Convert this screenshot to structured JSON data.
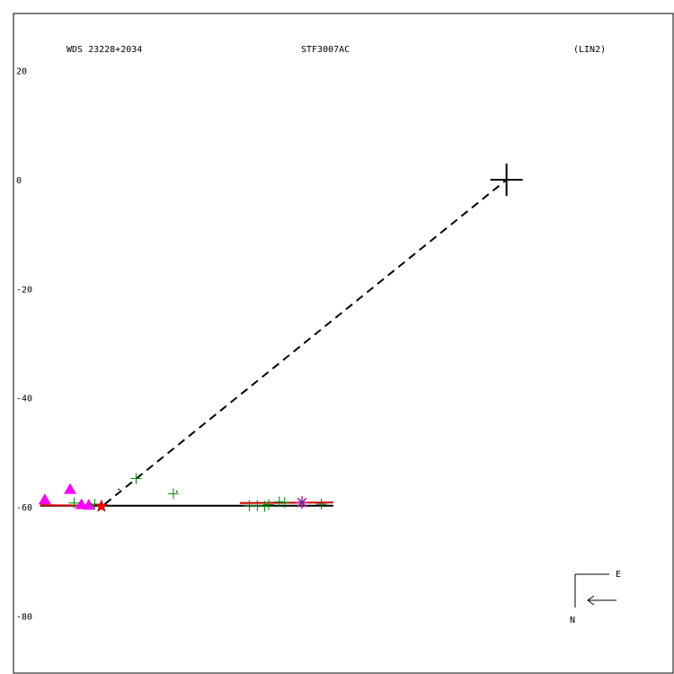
{
  "chart_data": {
    "type": "scatter",
    "header": {
      "left": "WDS 23228+2034",
      "center": "STF3007AC",
      "right": "(LIN2)"
    },
    "y_ticks": [
      20,
      0,
      -20,
      -40,
      -60,
      -80
    ],
    "ylim": [
      -90.5,
      30.5
    ],
    "xlim": [
      -74.0,
      25.0
    ],
    "primary_star": [
      0,
      0
    ],
    "dashed_line": [
      [
        -60.3,
        -59.5
      ],
      [
        0,
        0
      ]
    ],
    "fit_lines": [
      {
        "color": "#000000",
        "points": [
          [
            -70,
            -59.8
          ],
          [
            -26,
            -59.8
          ]
        ]
      },
      {
        "color": "#cc0000",
        "points": [
          [
            -70,
            -59.7
          ],
          [
            -62,
            -59.8
          ]
        ]
      },
      {
        "color": "#cc0000",
        "points": [
          [
            -40,
            -59.3
          ],
          [
            -26,
            -59.2
          ]
        ]
      }
    ],
    "observations": {
      "triangles": [
        [
          -69.3,
          -58.7
        ],
        [
          -65.5,
          -56.8
        ],
        [
          -63.8,
          -59.6
        ],
        [
          -62.7,
          -59.7
        ]
      ],
      "plus_green": [
        [
          -64.9,
          -59.3
        ],
        [
          -61.8,
          -59.5
        ],
        [
          -55.6,
          -54.8
        ],
        [
          -50.0,
          -57.6
        ],
        [
          -38.6,
          -59.8
        ],
        [
          -37.4,
          -59.8
        ],
        [
          -36.3,
          -59.9
        ],
        [
          -35.7,
          -59.6
        ],
        [
          -34.1,
          -59.1
        ],
        [
          -33.3,
          -59.2
        ],
        [
          -27.8,
          -59.5
        ]
      ],
      "stars_red": [
        [
          -60.8,
          -59.9
        ]
      ],
      "asterisks": [
        [
          -30.7,
          -59.2
        ]
      ],
      "dots_black": [
        [
          -58.2,
          -56.8
        ],
        [
          -49.5,
          -57.2
        ]
      ]
    },
    "compass": {
      "east_label": "E",
      "north_label": "N"
    }
  }
}
